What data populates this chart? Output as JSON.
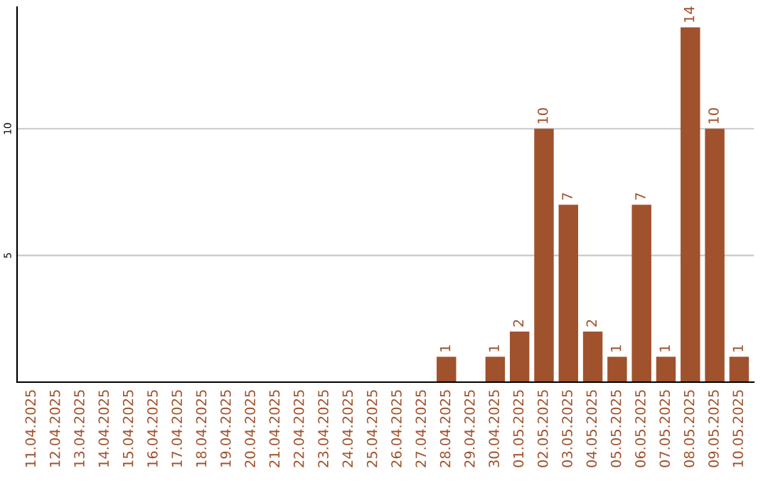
{
  "chart_data": {
    "type": "bar",
    "categories": [
      "11.04.2025",
      "12.04.2025",
      "13.04.2025",
      "14.04.2025",
      "15.04.2025",
      "16.04.2025",
      "17.04.2025",
      "18.04.2025",
      "19.04.2025",
      "20.04.2025",
      "21.04.2025",
      "22.04.2025",
      "23.04.2025",
      "24.04.2025",
      "25.04.2025",
      "26.04.2025",
      "27.04.2025",
      "28.04.2025",
      "29.04.2025",
      "30.04.2025",
      "01.05.2025",
      "02.05.2025",
      "03.05.2025",
      "04.05.2025",
      "05.05.2025",
      "06.05.2025",
      "07.05.2025",
      "08.05.2025",
      "09.05.2025",
      "10.05.2025"
    ],
    "values": [
      0,
      0,
      0,
      0,
      0,
      0,
      0,
      0,
      0,
      0,
      0,
      0,
      0,
      0,
      0,
      0,
      0,
      1,
      0,
      1,
      2,
      10,
      7,
      2,
      1,
      7,
      1,
      14,
      10,
      1
    ],
    "value_labels": [
      null,
      null,
      null,
      null,
      null,
      null,
      null,
      null,
      null,
      null,
      null,
      null,
      null,
      null,
      null,
      null,
      null,
      "1",
      null,
      "1",
      "2",
      "10",
      "7",
      "2",
      "1",
      "7",
      "1",
      "14",
      "10",
      "1"
    ],
    "color": "#a0522d",
    "ylim": [
      0,
      14.8
    ],
    "yticks": [
      5,
      10
    ],
    "grid": "y"
  }
}
